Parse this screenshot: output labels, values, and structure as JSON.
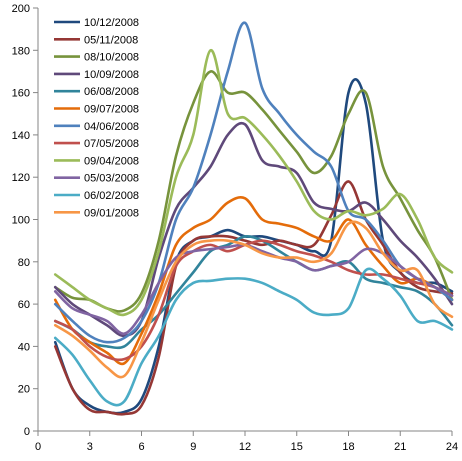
{
  "chart_data": {
    "type": "line",
    "title": "",
    "xlabel": "",
    "ylabel": "",
    "xlim": [
      0,
      24
    ],
    "ylim": [
      0,
      200
    ],
    "xticks": [
      0,
      3,
      6,
      9,
      12,
      15,
      18,
      21,
      24
    ],
    "yticks": [
      0,
      20,
      40,
      60,
      80,
      100,
      120,
      140,
      160,
      180,
      200
    ],
    "grid": false,
    "legend": "top-left inside",
    "x": [
      1,
      2,
      3,
      4,
      5,
      6,
      7,
      8,
      9,
      10,
      11,
      12,
      13,
      14,
      15,
      16,
      17,
      18,
      19,
      20,
      21,
      22,
      23,
      24
    ],
    "series": [
      {
        "name": "10/12/2008",
        "color": "#1F497D",
        "values": [
          42,
          20,
          12,
          9,
          9,
          15,
          40,
          80,
          90,
          92,
          95,
          92,
          92,
          90,
          88,
          85,
          90,
          160,
          155,
          90,
          75,
          70,
          70,
          66
        ]
      },
      {
        "name": "05/11/2008",
        "color": "#953735",
        "values": [
          40,
          20,
          10,
          9,
          8,
          12,
          35,
          78,
          90,
          92,
          92,
          90,
          88,
          90,
          88,
          88,
          102,
          118,
          100,
          88,
          75,
          68,
          66,
          65
        ]
      },
      {
        "name": "08/10/2008",
        "color": "#77933C",
        "values": [
          68,
          63,
          62,
          58,
          57,
          65,
          90,
          130,
          155,
          170,
          160,
          160,
          152,
          142,
          132,
          122,
          130,
          150,
          160,
          125,
          110,
          95,
          82,
          62
        ]
      },
      {
        "name": "10/09/2008",
        "color": "#5F497A",
        "values": [
          68,
          60,
          55,
          50,
          45,
          52,
          82,
          105,
          115,
          125,
          140,
          145,
          128,
          125,
          122,
          108,
          105,
          104,
          108,
          100,
          90,
          82,
          72,
          60
        ]
      },
      {
        "name": "06/08/2008",
        "color": "#31849B",
        "values": [
          52,
          48,
          42,
          40,
          40,
          48,
          55,
          65,
          75,
          85,
          88,
          92,
          90,
          85,
          80,
          76,
          78,
          80,
          72,
          70,
          68,
          66,
          60,
          50
        ]
      },
      {
        "name": "09/07/2008",
        "color": "#E46C0A",
        "values": [
          62,
          48,
          42,
          37,
          32,
          46,
          65,
          88,
          96,
          100,
          108,
          110,
          100,
          98,
          96,
          92,
          90,
          100,
          88,
          78,
          70,
          72,
          68,
          62
        ]
      },
      {
        "name": "04/06/2008",
        "color": "#4F81BD",
        "values": [
          60,
          52,
          45,
          42,
          44,
          52,
          70,
          100,
          115,
          140,
          170,
          193,
          162,
          150,
          140,
          132,
          125,
          104,
          100,
          90,
          78,
          72,
          68,
          62
        ]
      },
      {
        "name": "07/05/2008",
        "color": "#C0504D",
        "values": [
          52,
          48,
          40,
          35,
          34,
          40,
          55,
          78,
          85,
          88,
          85,
          88,
          90,
          88,
          85,
          83,
          80,
          76,
          74,
          74,
          72,
          70,
          68,
          64
        ]
      },
      {
        "name": "09/04/2008",
        "color": "#9BBB59",
        "values": [
          74,
          68,
          62,
          58,
          55,
          62,
          85,
          120,
          140,
          180,
          150,
          148,
          140,
          130,
          118,
          104,
          100,
          104,
          102,
          105,
          112,
          100,
          82,
          75
        ]
      },
      {
        "name": "05/03/2008",
        "color": "#8064A2",
        "values": [
          66,
          58,
          55,
          52,
          46,
          55,
          70,
          82,
          85,
          86,
          87,
          88,
          85,
          82,
          80,
          76,
          78,
          80,
          86,
          84,
          78,
          72,
          68,
          64
        ]
      },
      {
        "name": "06/02/2008",
        "color": "#4BACC6",
        "values": [
          44,
          36,
          24,
          14,
          14,
          32,
          45,
          62,
          70,
          71,
          72,
          72,
          70,
          66,
          62,
          56,
          55,
          58,
          76,
          72,
          64,
          52,
          52,
          48
        ]
      },
      {
        "name": "09/01/2008",
        "color": "#F79646",
        "values": [
          50,
          45,
          38,
          30,
          26,
          42,
          62,
          80,
          88,
          90,
          90,
          88,
          84,
          82,
          82,
          80,
          84,
          98,
          96,
          84,
          76,
          76,
          60,
          54
        ]
      }
    ]
  }
}
